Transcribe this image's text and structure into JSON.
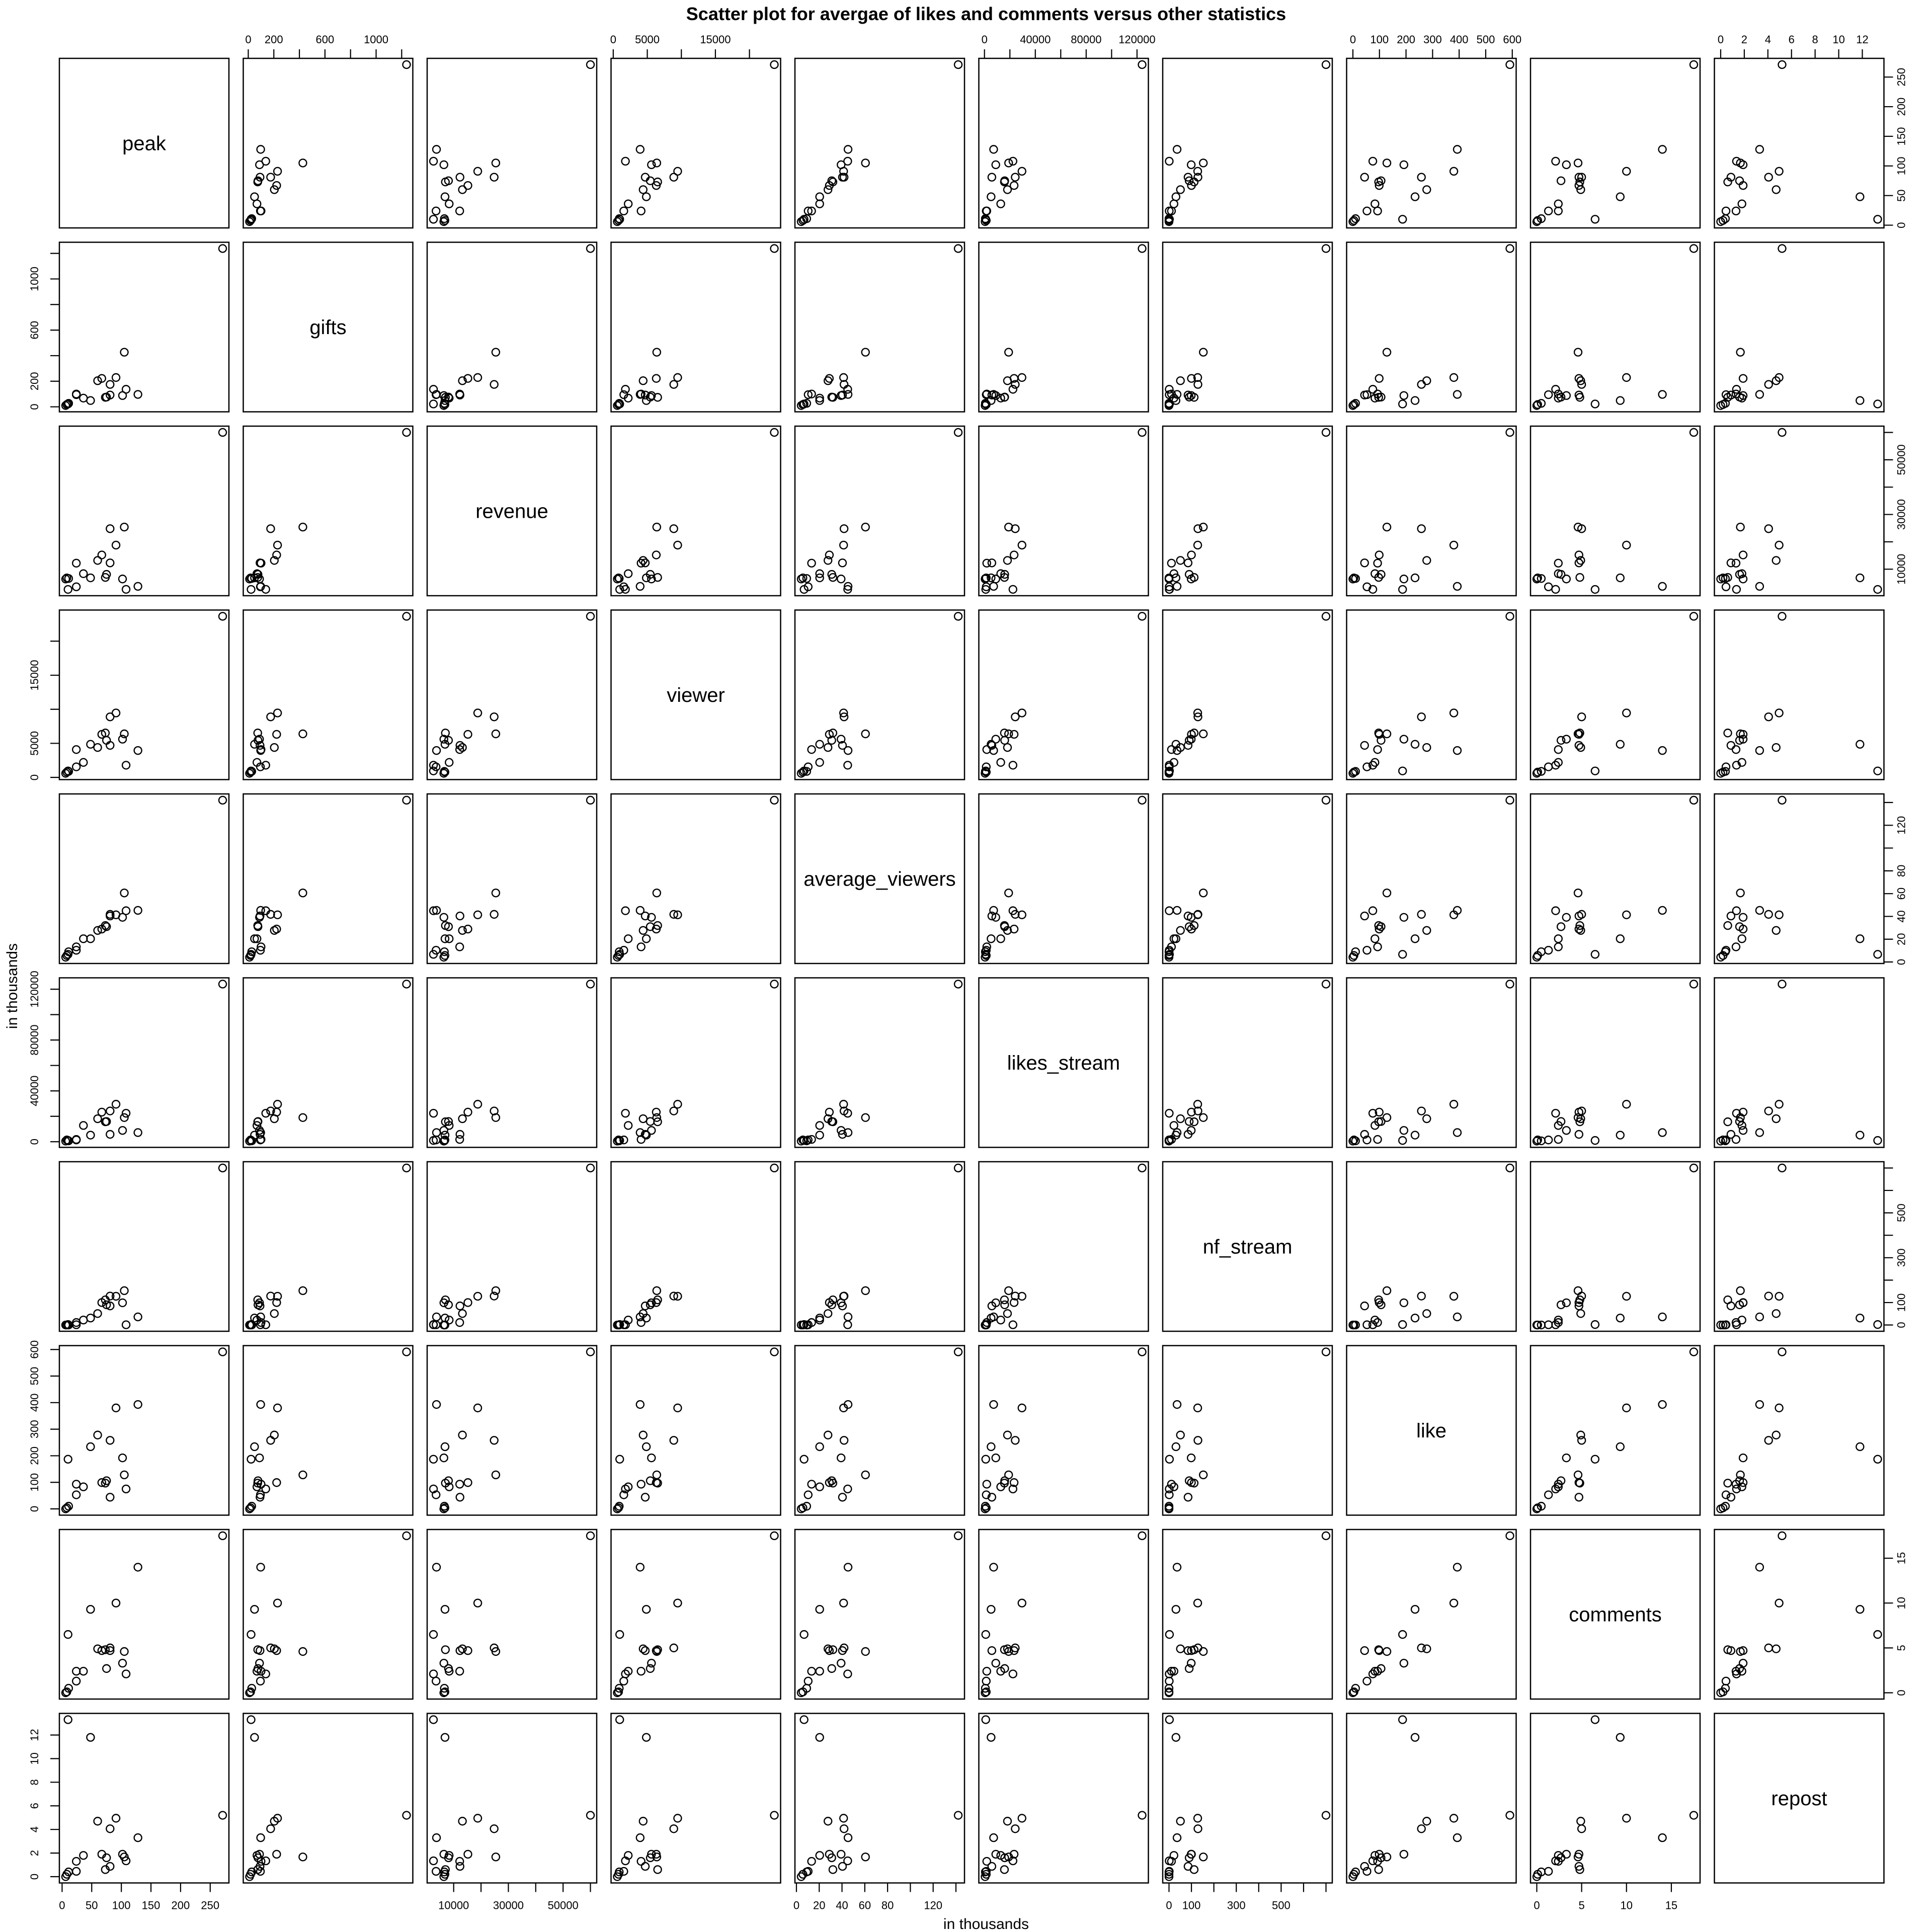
{
  "chart_data": {
    "type": "scatter",
    "subtype": "scatterplot-matrix",
    "title": "Scatter plot for avergae of likes and comments versus other statistics",
    "xlabel": "in thousands",
    "ylabel": "in thousands",
    "grid": false,
    "marker": "open-circle",
    "color": "#000000",
    "variables": [
      {
        "name": "peak",
        "ticks": [
          0,
          50,
          100,
          150,
          200,
          250
        ],
        "tick_labels": [
          "0",
          "50",
          "100",
          "150",
          "200",
          "250"
        ]
      },
      {
        "name": "gifts",
        "ticks": [
          0,
          200,
          400,
          600,
          800,
          1000,
          1200
        ],
        "tick_labels": [
          "0",
          "200",
          "",
          "600",
          "",
          "1000",
          ""
        ]
      },
      {
        "name": "revenue",
        "ticks": [
          10000,
          20000,
          30000,
          40000,
          50000,
          60000
        ],
        "tick_labels": [
          "10000",
          "",
          "30000",
          "",
          "50000",
          ""
        ]
      },
      {
        "name": "viewer",
        "ticks": [
          0,
          5000,
          10000,
          15000,
          20000
        ],
        "tick_labels": [
          "0",
          "5000",
          "",
          "15000",
          ""
        ]
      },
      {
        "name": "average_viewers",
        "ticks": [
          0,
          20,
          40,
          60,
          80,
          100,
          120,
          140
        ],
        "tick_labels": [
          "0",
          "20",
          "40",
          "60",
          "80",
          "",
          "120",
          ""
        ]
      },
      {
        "name": "likes_stream",
        "ticks": [
          0,
          20000,
          40000,
          60000,
          80000,
          100000,
          120000
        ],
        "tick_labels": [
          "0",
          "",
          "40000",
          "",
          "80000",
          "",
          "120000"
        ]
      },
      {
        "name": "nf_stream",
        "ticks": [
          0,
          100,
          200,
          300,
          400,
          500,
          600,
          700
        ],
        "tick_labels": [
          "0",
          "100",
          "",
          "300",
          "",
          "500",
          "",
          ""
        ]
      },
      {
        "name": "like",
        "ticks": [
          0,
          100,
          200,
          300,
          400,
          500,
          600
        ],
        "tick_labels": [
          "0",
          "100",
          "200",
          "300",
          "400",
          "500",
          "600"
        ]
      },
      {
        "name": "comments",
        "ticks": [
          0,
          5,
          10,
          15
        ],
        "tick_labels": [
          "0",
          "5",
          "10",
          "15"
        ]
      },
      {
        "name": "repost",
        "ticks": [
          0,
          2,
          4,
          6,
          8,
          10,
          12
        ],
        "tick_labels": [
          "0",
          "2",
          "4",
          "6",
          "8",
          "10",
          "12"
        ]
      }
    ],
    "observations": [
      [
        6,
        10,
        6400,
        600,
        4.2,
        500,
        0,
        0,
        0,
        0
      ],
      [
        8,
        18,
        6800,
        780,
        5.7,
        1400,
        0,
        4,
        0.1,
        0.2
      ],
      [
        10,
        22,
        2600,
        950,
        6.7,
        1000,
        2,
        187,
        6.5,
        13.3
      ],
      [
        11,
        27,
        6600,
        880,
        9,
        700,
        0,
        10,
        0.5,
        0.4
      ],
      [
        24,
        100,
        12200,
        4090,
        13.3,
        1800,
        11,
        93,
        2.4,
        1.3
      ],
      [
        24,
        95,
        3560,
        1550,
        10.3,
        1400,
        1,
        53,
        1.3,
        0.45
      ],
      [
        36,
        68,
        8350,
        2200,
        20.4,
        12800,
        22,
        83,
        2.4,
        1.8
      ],
      [
        48,
        49,
        6830,
        4860,
        20.4,
        5200,
        31,
        234,
        9.3,
        11.8
      ],
      [
        60,
        204,
        13200,
        4390,
        27.7,
        18100,
        51,
        278,
        4.9,
        4.7
      ],
      [
        67,
        222,
        15200,
        6320,
        28.9,
        23300,
        100,
        99,
        4.7,
        1.9
      ],
      [
        73,
        74,
        6980,
        6520,
        32,
        15700,
        112,
        97,
        4.8,
        0.6
      ],
      [
        75,
        76,
        8100,
        5440,
        31,
        15900,
        90,
        106,
        2.7,
        1.6
      ],
      [
        81,
        175,
        24800,
        8890,
        41.8,
        24200,
        129,
        258,
        5.0,
        4.06
      ],
      [
        81,
        92,
        12300,
        4700,
        40.4,
        5800,
        85,
        44,
        4.7,
        0.87
      ],
      [
        91,
        229,
        18800,
        9460,
        41.4,
        29500,
        128,
        380,
        10,
        4.95
      ],
      [
        102,
        88,
        6420,
        5610,
        39.2,
        8900,
        99,
        192,
        3.3,
        1.9
      ],
      [
        105,
        427,
        25400,
        6390,
        60.6,
        19000,
        153,
        128,
        4.6,
        1.67
      ],
      [
        108,
        137,
        2620,
        1790,
        45,
        22400,
        1,
        75,
        2.1,
        1.34
      ],
      [
        128,
        97,
        3720,
        3950,
        45.3,
        7200,
        36,
        393,
        14,
        3.3
      ],
      [
        271,
        1238,
        60000,
        23650,
        142,
        124000,
        700,
        591,
        17.5,
        5.2
      ]
    ]
  }
}
